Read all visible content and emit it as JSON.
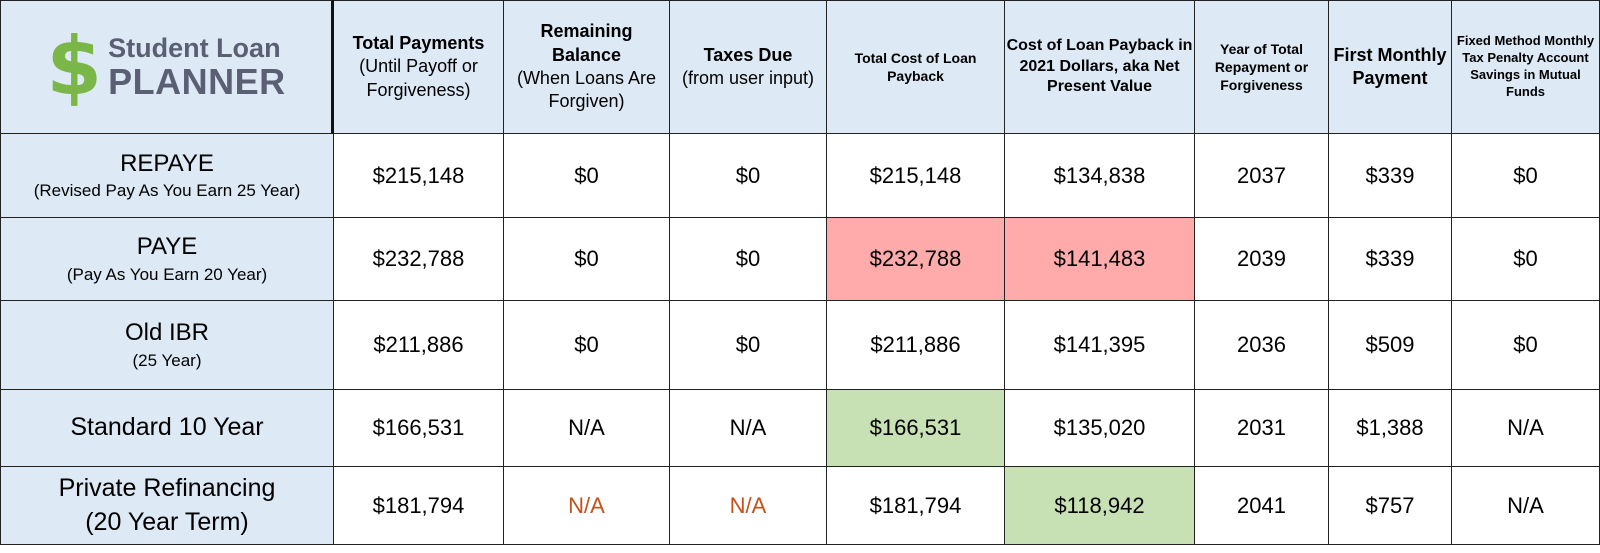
{
  "logo": {
    "dollar": "$",
    "top": "Student Loan",
    "bottom": "PLANNER"
  },
  "headers": [
    {
      "bold": "Total Payments",
      "normal": "(Until Payoff or Forgiveness)"
    },
    {
      "bold": "Remaining Balance",
      "normal": "(When Loans Are Forgiven)"
    },
    {
      "bold": "Taxes Due",
      "normal": "(from user input)"
    },
    {
      "bold": "Total Cost of Loan Payback"
    },
    {
      "bold": "Cost of Loan Payback in 2021 Dollars, aka Net Present Value"
    },
    {
      "bold": "Year of Total Repayment or Forgiveness"
    },
    {
      "bold": "First Monthly Payment"
    },
    {
      "bold": "Fixed Method Monthly Tax Penalty Account Savings in Mutual Funds"
    }
  ],
  "rows": [
    {
      "label": "REPAYE",
      "sublabel": "(Revised Pay As You Earn 25 Year)",
      "values": [
        "$215,148",
        "$0",
        "$0",
        "$215,148",
        "$134,838",
        "2037",
        "$339",
        "$0"
      ]
    },
    {
      "label": "PAYE",
      "sublabel": "(Pay As You Earn 20 Year)",
      "values": [
        "$232,788",
        "$0",
        "$0",
        "$232,788",
        "$141,483",
        "2039",
        "$339",
        "$0"
      ]
    },
    {
      "label": "Old IBR",
      "sublabel": "(25 Year)",
      "values": [
        "$211,886",
        "$0",
        "$0",
        "$211,886",
        "$141,395",
        "2036",
        "$509",
        "$0"
      ]
    },
    {
      "label": "Standard 10 Year",
      "values": [
        "$166,531",
        "N/A",
        "N/A",
        "$166,531",
        "$135,020",
        "2031",
        "$1,388",
        "N/A"
      ]
    },
    {
      "label": "Private Refinancing",
      "sublabel": "(20 Year Term)",
      "values": [
        "$181,794",
        "N/A",
        "N/A",
        "$181,794",
        "$118,942",
        "2041",
        "$757",
        "N/A"
      ]
    }
  ],
  "colors": {
    "header_bg": "#dde9f5",
    "highlight_worst": "#ffabab",
    "highlight_best": "#c7e0b4",
    "na_warning_text": "#c4511c",
    "logo_green": "#7ab648",
    "logo_gray": "#5a5f73"
  }
}
